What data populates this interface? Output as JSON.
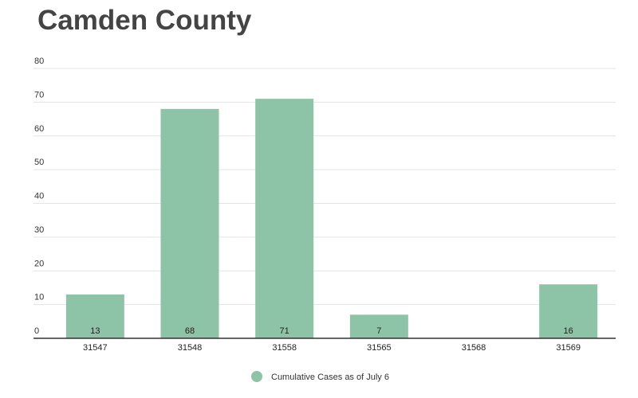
{
  "chart_data": {
    "type": "bar",
    "title": "Camden County",
    "xlabel": "",
    "ylabel": "",
    "categories": [
      "31547",
      "31548",
      "31558",
      "31565",
      "31568",
      "31569"
    ],
    "series": [
      {
        "name": "Cumulative Cases as of July 6",
        "values": [
          13,
          68,
          71,
          7,
          null,
          16
        ],
        "color": "#8dc3a7"
      }
    ],
    "ylim": [
      0,
      80
    ],
    "yticks": [
      0,
      10,
      20,
      30,
      40,
      50,
      60,
      70,
      80
    ],
    "grid": true,
    "legend_position": "bottom"
  }
}
